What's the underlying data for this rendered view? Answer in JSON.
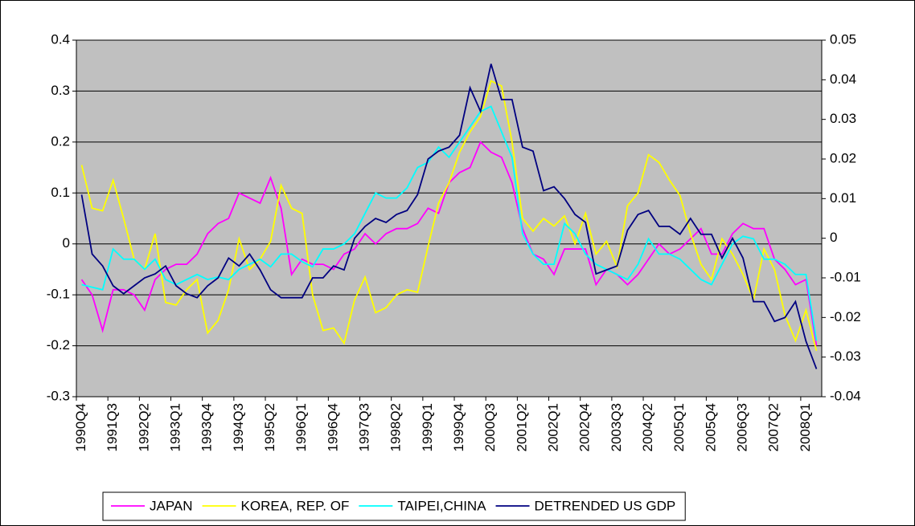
{
  "chart_data": {
    "type": "line",
    "categories": [
      "1990Q4",
      null,
      null,
      "1991Q3",
      null,
      null,
      "1992Q2",
      null,
      null,
      "1993Q1",
      null,
      null,
      "1993Q4",
      null,
      null,
      "1994Q3",
      null,
      null,
      "1995Q2",
      null,
      null,
      "1996Q1",
      null,
      null,
      "1996Q4",
      null,
      null,
      "1997Q3",
      null,
      null,
      "1998Q2",
      null,
      null,
      "1999Q1",
      null,
      null,
      "1999Q4",
      null,
      null,
      "2000Q3",
      null,
      null,
      "2001Q2",
      null,
      null,
      "2002Q1",
      null,
      null,
      "2002Q4",
      null,
      null,
      "2003Q3",
      null,
      null,
      "2004Q2",
      null,
      null,
      "2005Q1",
      null,
      null,
      "2005Q4",
      null,
      null,
      "2006Q3",
      null,
      null,
      "2007Q2",
      null,
      null,
      "2008Q1",
      null
    ],
    "series": [
      {
        "name": "JAPAN",
        "color": "#ff00ff",
        "values": [
          -0.07,
          -0.1,
          -0.17,
          -0.09,
          -0.09,
          -0.1,
          -0.13,
          -0.07,
          -0.05,
          -0.04,
          -0.04,
          -0.02,
          0.02,
          0.04,
          0.05,
          0.1,
          0.09,
          0.08,
          0.13,
          0.07,
          -0.06,
          -0.03,
          -0.04,
          -0.04,
          -0.05,
          -0.02,
          -0.01,
          0.02,
          0.0,
          0.02,
          0.03,
          0.03,
          0.04,
          0.07,
          0.06,
          0.12,
          0.14,
          0.15,
          0.2,
          0.18,
          0.17,
          0.12,
          0.03,
          -0.02,
          -0.03,
          -0.06,
          -0.01,
          -0.01,
          -0.01,
          -0.08,
          -0.05,
          -0.06,
          -0.08,
          -0.06,
          -0.03,
          0.0,
          -0.02,
          -0.01,
          0.01,
          0.03,
          -0.02,
          -0.02,
          0.02,
          0.04,
          0.03,
          0.03,
          -0.03,
          -0.05,
          -0.08,
          -0.07,
          -0.2
        ]
      },
      {
        "name": "KOREA, REP. OF",
        "color": "#ffff00",
        "values": [
          0.155,
          0.07,
          0.065,
          0.125,
          0.05,
          -0.03,
          -0.05,
          0.02,
          -0.115,
          -0.12,
          -0.09,
          -0.07,
          -0.175,
          -0.15,
          -0.09,
          0.01,
          -0.05,
          -0.03,
          0.005,
          0.115,
          0.07,
          0.06,
          -0.1,
          -0.17,
          -0.165,
          -0.195,
          -0.11,
          -0.065,
          -0.135,
          -0.125,
          -0.1,
          -0.09,
          -0.095,
          -0.005,
          0.08,
          0.12,
          0.18,
          0.22,
          0.25,
          0.32,
          0.31,
          0.2,
          0.05,
          0.025,
          0.05,
          0.035,
          0.055,
          0.0,
          0.06,
          -0.02,
          0.005,
          -0.045,
          0.075,
          0.1,
          0.175,
          0.16,
          0.125,
          0.095,
          0.02,
          -0.04,
          -0.07,
          0.01,
          -0.02,
          -0.06,
          -0.11,
          -0.01,
          -0.05,
          -0.14,
          -0.19,
          -0.13,
          -0.21
        ]
      },
      {
        "name": "TAIPEI,CHINA",
        "color": "#00ffff",
        "values": [
          -0.08,
          -0.085,
          -0.09,
          -0.01,
          -0.03,
          -0.03,
          -0.05,
          -0.03,
          -0.07,
          -0.08,
          -0.07,
          -0.06,
          -0.07,
          -0.065,
          -0.07,
          -0.05,
          -0.04,
          -0.03,
          -0.045,
          -0.02,
          -0.02,
          -0.035,
          -0.045,
          -0.01,
          -0.01,
          0.0,
          0.02,
          0.06,
          0.1,
          0.09,
          0.09,
          0.11,
          0.15,
          0.16,
          0.19,
          0.17,
          0.2,
          0.23,
          0.26,
          0.27,
          0.22,
          0.17,
          0.02,
          -0.02,
          -0.04,
          -0.04,
          0.04,
          0.02,
          -0.02,
          -0.04,
          -0.05,
          -0.06,
          -0.07,
          -0.04,
          0.01,
          -0.02,
          -0.02,
          -0.03,
          -0.05,
          -0.07,
          -0.08,
          -0.04,
          0.0,
          0.015,
          0.01,
          -0.03,
          -0.03,
          -0.04,
          -0.06,
          -0.06,
          -0.19
        ]
      },
      {
        "name": "DETRENDED US GDP",
        "color": "#000080",
        "axis": "y2",
        "values": [
          0.011,
          -0.004,
          -0.007,
          -0.012,
          -0.014,
          -0.012,
          -0.01,
          -0.009,
          -0.007,
          -0.012,
          -0.014,
          -0.015,
          -0.012,
          -0.01,
          -0.005,
          -0.007,
          -0.004,
          -0.008,
          -0.013,
          -0.015,
          -0.015,
          -0.015,
          -0.01,
          -0.01,
          -0.007,
          -0.008,
          0.0,
          0.003,
          0.005,
          0.004,
          0.006,
          0.007,
          0.011,
          0.02,
          0.022,
          0.023,
          0.026,
          0.038,
          0.032,
          0.044,
          0.035,
          0.035,
          0.023,
          0.022,
          0.012,
          0.013,
          0.01,
          0.006,
          0.004,
          -0.009,
          -0.008,
          -0.007,
          0.002,
          0.006,
          0.007,
          0.003,
          0.003,
          0.001,
          0.005,
          0.001,
          0.001,
          -0.005,
          0.0,
          -0.005,
          -0.016,
          -0.016,
          -0.021,
          -0.02,
          -0.016,
          -0.026,
          -0.033
        ]
      }
    ],
    "ylim": [
      -0.3,
      0.4
    ],
    "yticks": [
      -0.3,
      -0.2,
      -0.1,
      0,
      0.1,
      0.2,
      0.3,
      0.4
    ],
    "y2lim": [
      -0.04,
      0.05
    ],
    "y2ticks": [
      -0.04,
      -0.03,
      -0.02,
      -0.01,
      0,
      0.01,
      0.02,
      0.03,
      0.04,
      0.05
    ],
    "grid": true,
    "legend": "bottom",
    "background": "#c0c0c0"
  }
}
